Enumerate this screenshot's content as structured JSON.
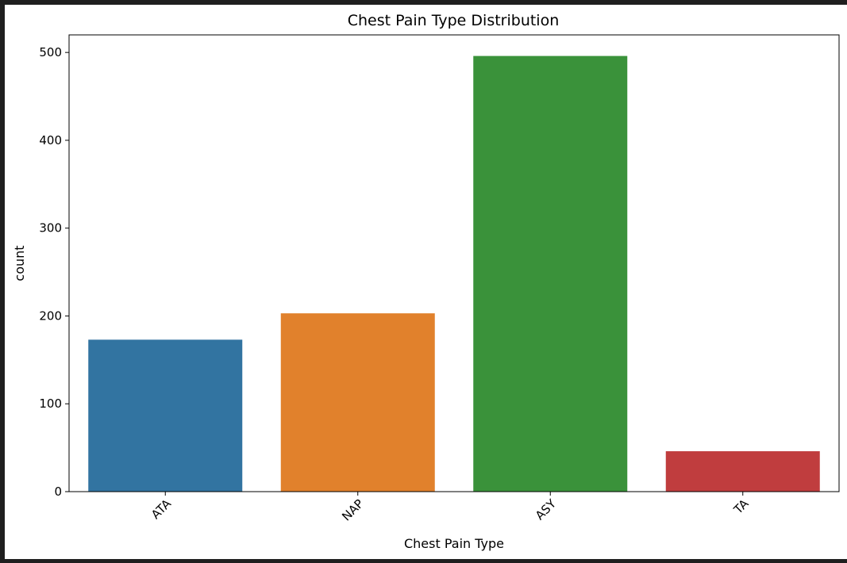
{
  "chart_data": {
    "type": "bar",
    "title": "Chest Pain Type Distribution",
    "xlabel": "Chest Pain Type",
    "ylabel": "count",
    "categories": [
      "ATA",
      "NAP",
      "ASY",
      "TA"
    ],
    "values": [
      173,
      203,
      496,
      46
    ],
    "colors": [
      "#3274a1",
      "#e1812c",
      "#3a923a",
      "#c03d3e"
    ],
    "ylim": [
      0,
      520
    ],
    "yticks": [
      0,
      100,
      200,
      300,
      400,
      500
    ],
    "xtick_rotation": 45,
    "grid": false,
    "legend": "none"
  }
}
